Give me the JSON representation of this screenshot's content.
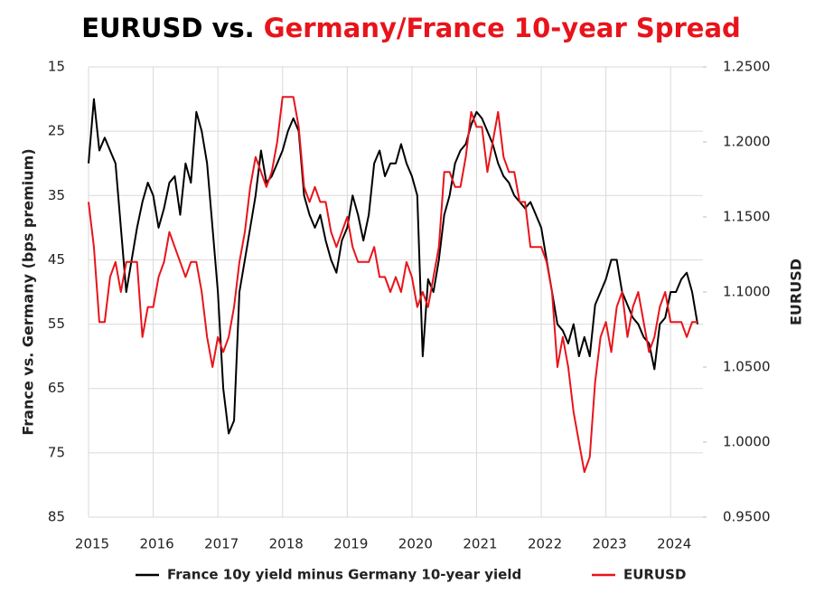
{
  "chart_data": {
    "type": "line",
    "title_parts": [
      "EURUSD vs. ",
      "Germany/France 10-year Spread"
    ],
    "title_colors": [
      "#000000",
      "#e8141b"
    ],
    "y_label": "France vs. Germany (bps premium)",
    "y2_label": "EURUSD",
    "x": [
      2015,
      2015.083,
      2015.167,
      2015.25,
      2015.333,
      2015.417,
      2015.5,
      2015.583,
      2015.667,
      2015.75,
      2015.833,
      2015.917,
      2016,
      2016.083,
      2016.167,
      2016.25,
      2016.333,
      2016.417,
      2016.5,
      2016.583,
      2016.667,
      2016.75,
      2016.833,
      2016.917,
      2017,
      2017.083,
      2017.167,
      2017.25,
      2017.333,
      2017.417,
      2017.5,
      2017.583,
      2017.667,
      2017.75,
      2017.833,
      2017.917,
      2018,
      2018.083,
      2018.167,
      2018.25,
      2018.333,
      2018.417,
      2018.5,
      2018.583,
      2018.667,
      2018.75,
      2018.833,
      2018.917,
      2019,
      2019.083,
      2019.167,
      2019.25,
      2019.333,
      2019.417,
      2019.5,
      2019.583,
      2019.667,
      2019.75,
      2019.833,
      2019.917,
      2020,
      2020.083,
      2020.167,
      2020.25,
      2020.333,
      2020.417,
      2020.5,
      2020.583,
      2020.667,
      2020.75,
      2020.833,
      2020.917,
      2021,
      2021.083,
      2021.167,
      2021.25,
      2021.333,
      2021.417,
      2021.5,
      2021.583,
      2021.667,
      2021.75,
      2021.833,
      2021.917,
      2022,
      2022.083,
      2022.167,
      2022.25,
      2022.333,
      2022.417,
      2022.5,
      2022.583,
      2022.667,
      2022.75,
      2022.833,
      2022.917,
      2023,
      2023.083,
      2023.167,
      2023.25,
      2023.333,
      2023.417,
      2023.5,
      2023.583,
      2023.667,
      2023.75,
      2023.833,
      2023.917,
      2024,
      2024.083,
      2024.167,
      2024.25,
      2024.333,
      2024.417
    ],
    "series": [
      {
        "name": "France 10y yield minus Germany 10-year yield",
        "color": "#000000",
        "axis": "y",
        "values": [
          30,
          20,
          28,
          26,
          28,
          30,
          40,
          50,
          45,
          40,
          36,
          33,
          35,
          40,
          37,
          33,
          32,
          38,
          30,
          33,
          22,
          25,
          30,
          40,
          50,
          65,
          72,
          70,
          50,
          45,
          40,
          35,
          28,
          33,
          32,
          30,
          28,
          25,
          23,
          25,
          35,
          38,
          40,
          38,
          42,
          45,
          47,
          42,
          40,
          35,
          38,
          42,
          38,
          30,
          28,
          32,
          30,
          30,
          27,
          30,
          32,
          35,
          60,
          48,
          50,
          45,
          38,
          35,
          30,
          28,
          27,
          24,
          22,
          23,
          25,
          27,
          30,
          32,
          33,
          35,
          36,
          37,
          36,
          38,
          40,
          45,
          50,
          55,
          56,
          58,
          55,
          60,
          57,
          60,
          52,
          50,
          48,
          45,
          45,
          50,
          52,
          54,
          55,
          57,
          58,
          62,
          55,
          54,
          50,
          50,
          48,
          47,
          50,
          55
        ]
      },
      {
        "name": "EURUSD",
        "color": "#e8141b",
        "axis": "y2",
        "values": [
          1.16,
          1.13,
          1.08,
          1.08,
          1.11,
          1.12,
          1.1,
          1.12,
          1.12,
          1.12,
          1.07,
          1.09,
          1.09,
          1.11,
          1.12,
          1.14,
          1.13,
          1.12,
          1.11,
          1.12,
          1.12,
          1.1,
          1.07,
          1.05,
          1.07,
          1.06,
          1.07,
          1.09,
          1.12,
          1.14,
          1.17,
          1.19,
          1.18,
          1.17,
          1.18,
          1.2,
          1.23,
          1.23,
          1.23,
          1.21,
          1.17,
          1.16,
          1.17,
          1.16,
          1.16,
          1.14,
          1.13,
          1.14,
          1.15,
          1.13,
          1.12,
          1.12,
          1.12,
          1.13,
          1.11,
          1.11,
          1.1,
          1.11,
          1.1,
          1.12,
          1.11,
          1.09,
          1.1,
          1.09,
          1.11,
          1.13,
          1.18,
          1.18,
          1.17,
          1.17,
          1.19,
          1.22,
          1.21,
          1.21,
          1.18,
          1.2,
          1.22,
          1.19,
          1.18,
          1.18,
          1.16,
          1.16,
          1.13,
          1.13,
          1.13,
          1.12,
          1.1,
          1.05,
          1.07,
          1.05,
          1.02,
          1.0,
          0.98,
          0.99,
          1.04,
          1.07,
          1.08,
          1.06,
          1.09,
          1.1,
          1.07,
          1.09,
          1.1,
          1.08,
          1.06,
          1.07,
          1.09,
          1.1,
          1.08,
          1.08,
          1.08,
          1.07,
          1.08,
          1.08
        ]
      }
    ],
    "xlim": [
      2015,
      2024.5
    ],
    "xticks": [
      2015,
      2016,
      2017,
      2018,
      2019,
      2020,
      2021,
      2022,
      2023,
      2024
    ],
    "ylim": [
      15,
      85
    ],
    "y_inverted": true,
    "yticks": [
      15,
      25,
      35,
      45,
      55,
      65,
      75,
      85
    ],
    "y2lim": [
      0.95,
      1.25
    ],
    "y2ticks": [
      {
        "value": 0.95,
        "label": "0.9500"
      },
      {
        "value": 1.0,
        "label": "1.0000"
      },
      {
        "value": 1.05,
        "label": "1.0500"
      },
      {
        "value": 1.1,
        "label": "1.1000"
      },
      {
        "value": 1.15,
        "label": "1.1500"
      },
      {
        "value": 1.2,
        "label": "1.2000"
      },
      {
        "value": 1.25,
        "label": "1.2500"
      }
    ],
    "grid": true
  }
}
